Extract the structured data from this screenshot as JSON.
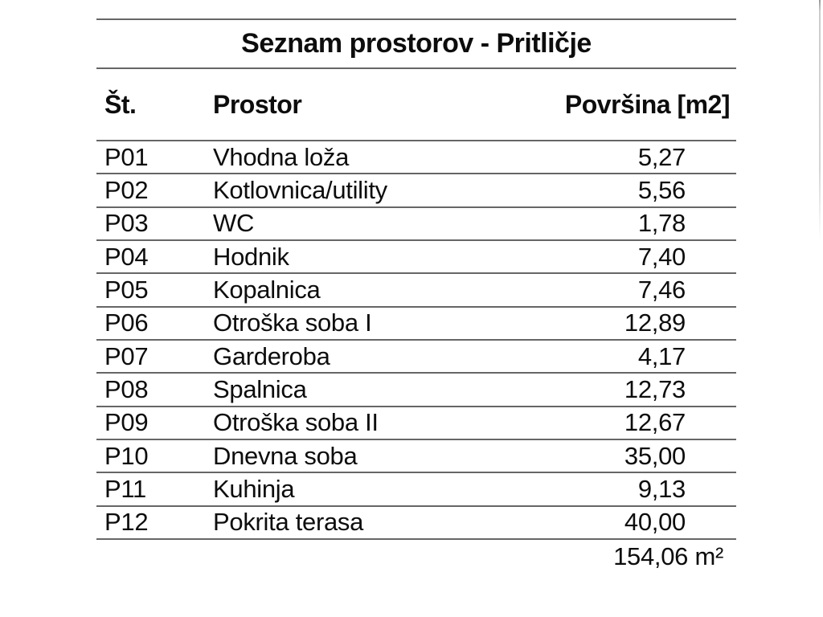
{
  "table": {
    "title": "Seznam prostorov - Pritličje",
    "columns": {
      "id": "Št.",
      "name": "Prostor",
      "area": "Površina [m2]"
    },
    "rows": [
      {
        "id": "P01",
        "name": "Vhodna loža",
        "area": "5,27"
      },
      {
        "id": "P02",
        "name": "Kotlovnica/utility",
        "area": "5,56"
      },
      {
        "id": "P03",
        "name": "WC",
        "area": "1,78"
      },
      {
        "id": "P04",
        "name": "Hodnik",
        "area": "7,40"
      },
      {
        "id": "P05",
        "name": "Kopalnica",
        "area": "7,46"
      },
      {
        "id": "P06",
        "name": "Otroška soba I",
        "area": "12,89"
      },
      {
        "id": "P07",
        "name": "Garderoba",
        "area": "4,17"
      },
      {
        "id": "P08",
        "name": "Spalnica",
        "area": "12,73"
      },
      {
        "id": "P09",
        "name": "Otroška soba II",
        "area": "12,67"
      },
      {
        "id": "P10",
        "name": "Dnevna soba",
        "area": "35,00"
      },
      {
        "id": "P11",
        "name": "Kuhinja",
        "area": "9,13"
      },
      {
        "id": "P12",
        "name": "Pokrita terasa",
        "area": "40,00"
      }
    ],
    "total": "154,06 m²"
  },
  "colors": {
    "rule": "#666666",
    "text": "#0d0d0d",
    "background": "#ffffff",
    "edge_artifact": "#cccccc"
  }
}
